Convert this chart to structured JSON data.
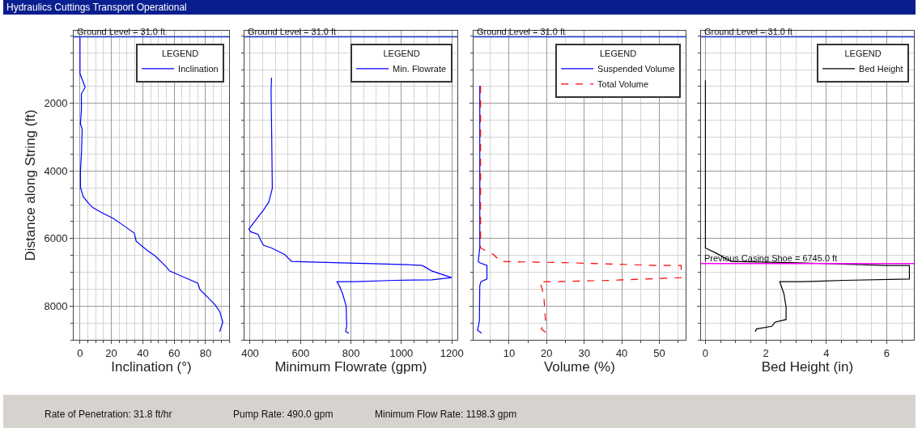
{
  "chart_data": [
    {
      "type": "line",
      "orientation": "horizontal",
      "title": "Hydraulics Cuttings Transport Operational",
      "xlabel": "Inclination (°)",
      "ylabel": "Distance along String (ft)",
      "legend_title": "LEGEND",
      "legend": "top right",
      "grid": true,
      "marker": "none",
      "xlim": [
        -4,
        95
      ],
      "xticks": [
        0,
        20,
        40,
        60,
        80
      ],
      "ylim": [
        9000,
        -150
      ],
      "yticks": [
        2000,
        4000,
        6000,
        8000
      ],
      "series": [
        {
          "name": "Inclination",
          "color": "#0000ff",
          "line_style": "solid",
          "x": [
            31,
            1120,
            1520,
            1720,
            2200,
            2600,
            2760,
            3400,
            4000,
            4480,
            4760,
            4960,
            5080,
            5240,
            5400,
            5560,
            5840,
            6080,
            6360,
            6520,
            6840,
            6960,
            7160,
            7320,
            7520,
            7720,
            7960,
            8160,
            8480,
            8760
          ],
          "values": [
            0,
            0,
            3.3,
            0.9,
            0.9,
            0.3,
            1.4,
            1,
            0.3,
            0.3,
            2,
            5.5,
            8,
            14,
            21,
            26,
            34.6,
            35.8,
            43,
            48,
            55,
            57,
            67,
            75,
            76.5,
            81,
            86,
            89,
            91,
            89
          ]
        }
      ],
      "ref_lines": [
        {
          "axis": "y",
          "value": 31,
          "label": "Ground Level = 31.0 ft",
          "color": "#1f3fd0"
        }
      ],
      "annotations": [
        "Rate of Penetration: 31.8 ft/hr",
        "Pump Rate: 490.0 gpm",
        "Minimum Flow Rate: 1198.3 gpm"
      ]
    },
    {
      "type": "line",
      "orientation": "horizontal",
      "xlabel": "Minimum Flowrate (gpm)",
      "legend_title": "LEGEND",
      "legend": "top right",
      "grid": true,
      "marker": "none",
      "tick_labels": "x",
      "xlim": [
        377,
        1222
      ],
      "xticks": [
        400,
        600,
        800,
        1000,
        1200
      ],
      "ylim": [
        9000,
        -150
      ],
      "yticks": [
        2000,
        4000,
        6000,
        8000
      ],
      "series": [
        {
          "name": "Min. Flowrate",
          "color": "#0000ff",
          "line_style": "solid",
          "x": [
            1240,
            1640,
            2600,
            4520,
            4920,
            5160,
            5360,
            5720,
            5800,
            5880,
            6040,
            6200,
            6280,
            6480,
            6680,
            6720,
            6744,
            6776,
            6800,
            6960,
            7160,
            7224,
            7240,
            7280,
            7280,
            7400,
            7640,
            8000,
            8600,
            8760,
            8800
          ],
          "values": [
            485,
            483,
            485,
            488,
            474,
            453,
            432,
            395,
            402,
            432,
            441,
            453,
            485,
            538,
            564,
            760,
            886,
            1025,
            1083,
            1120,
            1199,
            1120,
            972,
            818,
            744,
            754,
            767,
            781,
            783,
            779,
            792
          ]
        }
      ],
      "ref_lines": [
        {
          "axis": "y",
          "value": 31,
          "label": "Ground Level = 31.0 ft",
          "color": "#1f3fd0"
        }
      ]
    },
    {
      "type": "line",
      "orientation": "horizontal",
      "xlabel": "Volume (%)",
      "legend_title": "LEGEND",
      "legend": "top right",
      "grid": true,
      "marker": "none",
      "tick_labels": "x",
      "xlim": [
        0.5,
        57
      ],
      "xticks": [
        10,
        20,
        30,
        40,
        50
      ],
      "ylim": [
        9000,
        -150
      ],
      "yticks": [
        2000,
        4000,
        6000,
        8000
      ],
      "series": [
        {
          "name": "Suspended Volume",
          "color": "#0000ff",
          "line_style": "solid",
          "x": [
            1480,
            6280,
            6680,
            6720,
            6800,
            7200,
            7280,
            7400,
            8440,
            8720,
            8800
          ],
          "values": [
            2.2,
            2.2,
            1.8,
            2.2,
            4.1,
            4.1,
            2.5,
            2.2,
            2.1,
            1.6,
            2.7
          ]
        },
        {
          "name": "Total Volume",
          "color": "#ff0000",
          "line_style": "dashed",
          "x": [
            1480,
            6280,
            6480,
            6680,
            6720,
            6760,
            6800,
            6800,
            7160,
            7240,
            7280,
            7280,
            7480,
            7800,
            8440,
            8680,
            8800
          ],
          "values": [
            2.4,
            2.4,
            5.9,
            7.7,
            26.4,
            37.8,
            49.8,
            55.8,
            55.8,
            37,
            21.5,
            18.1,
            18.8,
            19.3,
            19.7,
            18.6,
            20
          ]
        }
      ],
      "ref_lines": [
        {
          "axis": "y",
          "value": 31,
          "label": "Ground Level = 31.0 ft",
          "color": "#1f3fd0"
        }
      ]
    },
    {
      "type": "line",
      "orientation": "horizontal",
      "xlabel": "Bed Height (in)",
      "legend_title": "LEGEND",
      "legend": "top right",
      "grid": true,
      "marker": "none",
      "tick_labels": "x",
      "xlim": [
        -0.15,
        6.9
      ],
      "xticks": [
        0,
        2,
        4,
        6
      ],
      "ylim": [
        9000,
        -150
      ],
      "yticks": [
        2000,
        4000,
        6000,
        8000
      ],
      "series": [
        {
          "name": "Bed Height",
          "color": "#000000",
          "line_style": "solid",
          "x": [
            1320,
            6280,
            6440,
            6680,
            6720,
            6800,
            6800,
            7200,
            7240,
            7280,
            7280,
            7640,
            8040,
            8400,
            8480,
            8600,
            8680,
            8760
          ],
          "values": [
            0,
            0,
            0.37,
            0.85,
            3.1,
            6.0,
            6.75,
            6.75,
            4.6,
            3.18,
            2.46,
            2.6,
            2.67,
            2.67,
            2.3,
            2.2,
            1.69,
            1.65
          ]
        }
      ],
      "ref_lines": [
        {
          "axis": "y",
          "value": 31,
          "label": "Ground Level = 31.0 ft",
          "color": "#1f3fd0"
        },
        {
          "axis": "y",
          "value": 6745,
          "label": "Previous Casing Shoe = 6745.0 ft",
          "color": "#ff00ff"
        }
      ]
    }
  ]
}
